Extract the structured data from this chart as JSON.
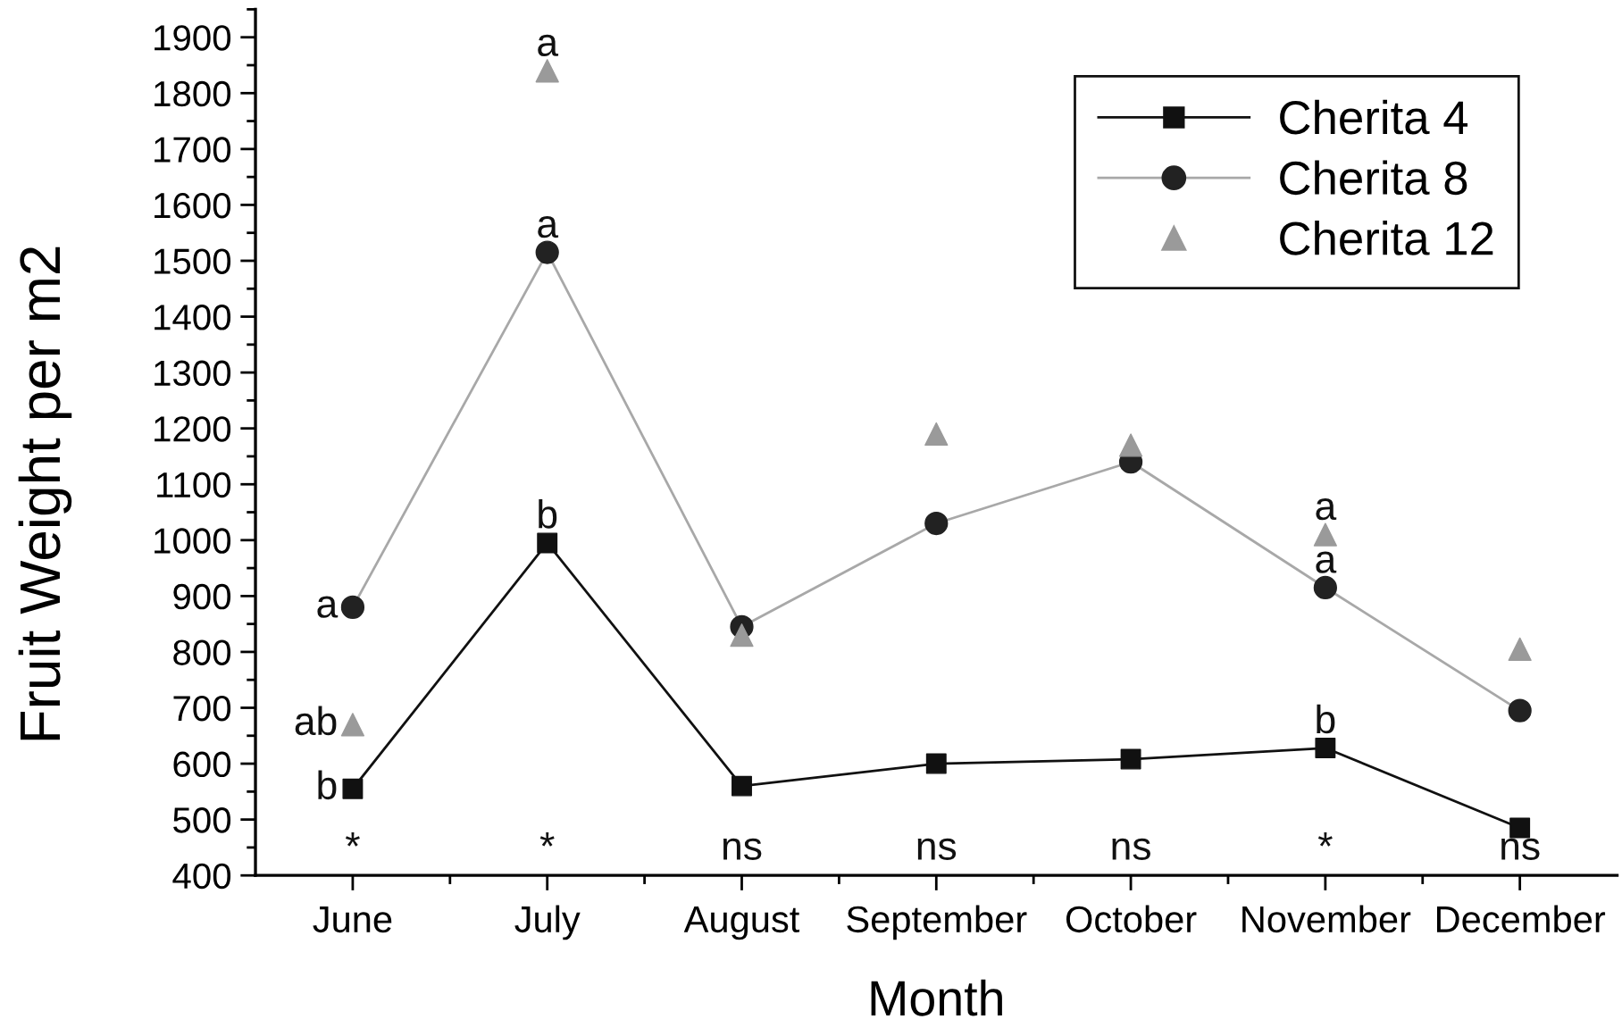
{
  "chart_data": {
    "type": "line",
    "xlabel": "Month",
    "ylabel": "Fruit Weight per m2",
    "categories": [
      "June",
      "July",
      "August",
      "September",
      "October",
      "November",
      "December"
    ],
    "series": [
      {
        "name": "Cherita 4",
        "color": "#111111",
        "marker": "square",
        "line_style": "solid",
        "values": [
          555,
          995,
          560,
          600,
          608,
          628,
          485
        ]
      },
      {
        "name": "Cherita 8",
        "color": "#a8a8a8",
        "colors": [
          "#222222",
          "#222222",
          "#222222",
          "#222222",
          "#222222",
          "#222222",
          "#222222"
        ],
        "marker": "circle",
        "line_style": "solid",
        "values": [
          880,
          1515,
          845,
          1030,
          1140,
          915,
          695
        ]
      },
      {
        "name": "Cherita 12",
        "type": "scatter",
        "color": "#9a9a9a",
        "marker": "triangle",
        "values": [
          670,
          1840,
          830,
          1190,
          1170,
          1010,
          805
        ]
      }
    ],
    "ylim": [
      400,
      1950
    ],
    "yticks": [
      400,
      500,
      600,
      700,
      800,
      900,
      1000,
      1100,
      1200,
      1300,
      1400,
      1500,
      1600,
      1700,
      1800,
      1900
    ],
    "legend": "top right",
    "annotations": [
      {
        "text": "a",
        "x": "July",
        "y": 1840
      },
      {
        "text": "a",
        "x": "July",
        "y": 1515
      },
      {
        "text": "b",
        "x": "July",
        "y": 995
      },
      {
        "text": "a",
        "x": "June",
        "y": 880
      },
      {
        "text": "ab",
        "x": "June",
        "y": 670
      },
      {
        "text": "b",
        "x": "June",
        "y": 555
      },
      {
        "text": "a",
        "x": "November",
        "y": 1010
      },
      {
        "text": "a",
        "x": "November",
        "y": 915
      },
      {
        "text": "b",
        "x": "November",
        "y": 628
      },
      "*",
      "*",
      "ns",
      "ns",
      "ns",
      "*",
      "ns"
    ]
  }
}
